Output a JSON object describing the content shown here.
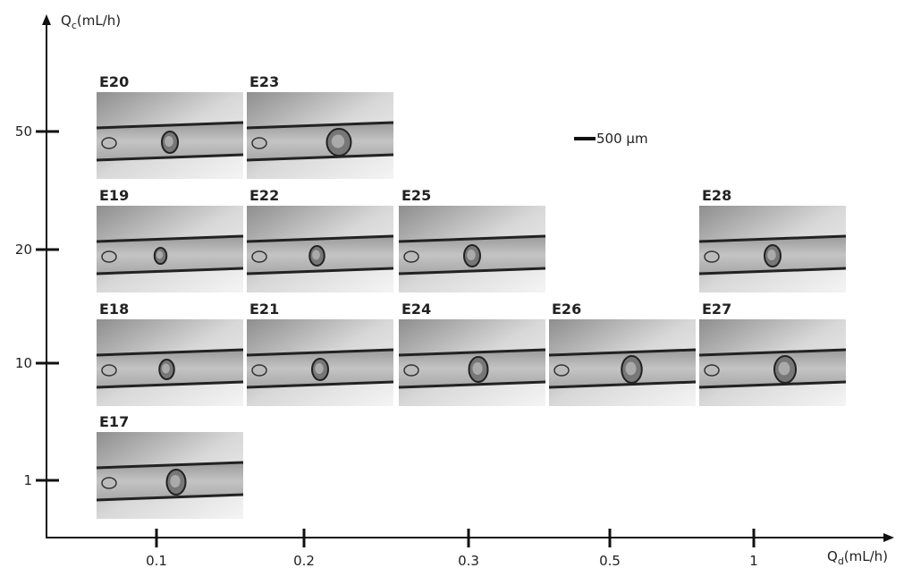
{
  "y_axis": {
    "symbol": "Q",
    "subscript": "c",
    "unit": "(mL/h)",
    "ticks": [
      "50",
      "20",
      "10",
      "1"
    ]
  },
  "x_axis": {
    "symbol": "Q",
    "subscript": "d",
    "unit": "(mL/h)",
    "ticks": [
      "0.1",
      "0.2",
      "0.3",
      "0.5",
      "1"
    ]
  },
  "scale_bar": "500 µm",
  "panels": [
    [
      "E20",
      "E23",
      null,
      null,
      null
    ],
    [
      "E19",
      "E22",
      "E25",
      null,
      "E28"
    ],
    [
      "E18",
      "E21",
      "E24",
      "E26",
      "E27"
    ],
    [
      "E17",
      null,
      null,
      null,
      null
    ]
  ]
}
